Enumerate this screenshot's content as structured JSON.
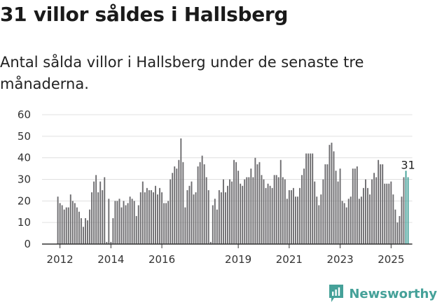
{
  "title": "31 villor såldes i Hallsberg",
  "subtitle": "Antal sålda villor i Hallsberg under de senaste tre månaderna.",
  "brand": "Newsworthy",
  "colors": {
    "bar": "#6d6c6f",
    "highlight": "#45a199",
    "axis": "#333333",
    "brand": "#45a199"
  },
  "chart_data": {
    "type": "bar",
    "ylim": [
      0,
      60
    ],
    "yticks": [
      0,
      10,
      20,
      30,
      40,
      50,
      60
    ],
    "x_tick_labels": [
      {
        "label": "2012",
        "index": 1
      },
      {
        "label": "2014",
        "index": 25
      },
      {
        "label": "2016",
        "index": 49
      },
      {
        "label": "2019",
        "index": 85
      },
      {
        "label": "2021",
        "index": 109
      },
      {
        "label": "2023",
        "index": 133
      },
      {
        "label": "2025",
        "index": 157
      }
    ],
    "values": [
      22,
      19,
      18,
      16,
      17,
      17,
      23,
      20,
      19,
      17,
      15,
      12,
      8,
      12,
      11,
      16,
      24,
      29,
      32,
      24,
      29,
      25,
      31,
      1,
      21,
      1,
      12,
      20,
      20,
      21,
      17,
      20,
      18,
      19,
      22,
      21,
      20,
      13,
      18,
      24,
      29,
      24,
      26,
      25,
      25,
      24,
      27,
      23,
      26,
      24,
      19,
      19,
      20,
      30,
      33,
      36,
      35,
      39,
      49,
      38,
      17,
      25,
      27,
      29,
      23,
      24,
      36,
      38,
      41,
      37,
      31,
      25,
      1,
      18,
      21,
      16,
      25,
      24,
      30,
      24,
      27,
      30,
      29,
      39,
      38,
      34,
      28,
      27,
      30,
      31,
      31,
      35,
      31,
      40,
      37,
      38,
      32,
      30,
      26,
      28,
      27,
      26,
      32,
      32,
      31,
      39,
      31,
      30,
      21,
      25,
      25,
      26,
      22,
      22,
      26,
      32,
      35,
      42,
      42,
      42,
      42,
      29,
      22,
      18,
      23,
      30,
      37,
      37,
      46,
      47,
      43,
      34,
      29,
      35,
      20,
      19,
      17,
      21,
      22,
      35,
      35,
      36,
      21,
      22,
      26,
      30,
      26,
      23,
      30,
      33,
      31,
      39,
      37,
      37,
      28,
      28,
      28,
      29,
      23,
      16,
      10,
      13,
      22,
      31,
      34,
      31
    ],
    "highlight_last": 2,
    "last_value_label": "31"
  }
}
